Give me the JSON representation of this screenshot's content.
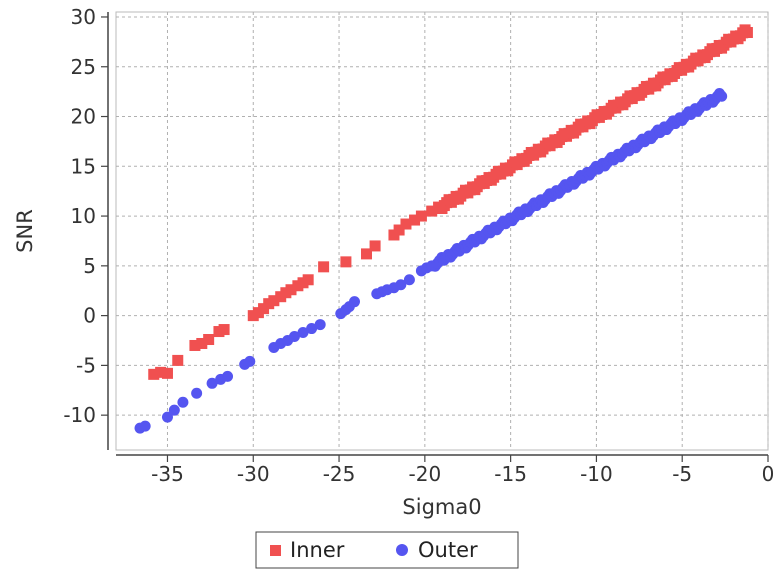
{
  "chart_data": {
    "type": "scatter",
    "xlabel": "Sigma0",
    "ylabel": "SNR",
    "xlim": [
      -38,
      0
    ],
    "ylim": [
      -13.5,
      30.5
    ],
    "xticks": [
      -35,
      -30,
      -25,
      -20,
      -15,
      -10,
      -5,
      0
    ],
    "yticks": [
      -10,
      -5,
      0,
      5,
      10,
      15,
      20,
      25,
      30
    ],
    "grid": true,
    "legend": "bottom",
    "series": [
      {
        "name": "Inner",
        "marker": "square",
        "color": "#f05050",
        "points": [
          [
            -35.8,
            -5.9
          ],
          [
            -35.4,
            -5.7
          ],
          [
            -35.0,
            -5.8
          ],
          [
            -34.4,
            -4.5
          ],
          [
            -33.4,
            -3.0
          ],
          [
            -33.0,
            -2.8
          ],
          [
            -32.6,
            -2.4
          ],
          [
            -32.0,
            -1.6
          ],
          [
            -31.7,
            -1.4
          ],
          [
            -30.0,
            0.0
          ],
          [
            -29.7,
            0.3
          ],
          [
            -29.4,
            0.7
          ],
          [
            -29.1,
            1.2
          ],
          [
            -28.8,
            1.5
          ],
          [
            -28.4,
            1.9
          ],
          [
            -28.1,
            2.3
          ],
          [
            -27.8,
            2.6
          ],
          [
            -27.4,
            3.0
          ],
          [
            -27.1,
            3.3
          ],
          [
            -26.8,
            3.6
          ],
          [
            -25.9,
            4.9
          ],
          [
            -24.6,
            5.4
          ],
          [
            -23.4,
            6.2
          ],
          [
            -22.9,
            7.0
          ],
          [
            -21.8,
            8.1
          ],
          [
            -21.5,
            8.6
          ],
          [
            -21.1,
            9.2
          ],
          [
            -20.6,
            9.6
          ],
          [
            -20.2,
            10.0
          ],
          [
            -19.6,
            10.5
          ],
          [
            -19.2,
            10.9
          ]
        ],
        "segments": [
          [
            -19.0,
            11.0,
            -1.2,
            28.6
          ]
        ]
      },
      {
        "name": "Outer",
        "marker": "circle",
        "color": "#5555f0",
        "points": [
          [
            -36.6,
            -11.3
          ],
          [
            -36.3,
            -11.1
          ],
          [
            -35.0,
            -10.2
          ],
          [
            -34.6,
            -9.5
          ],
          [
            -34.1,
            -8.7
          ],
          [
            -33.3,
            -7.8
          ],
          [
            -32.4,
            -6.8
          ],
          [
            -31.9,
            -6.4
          ],
          [
            -31.5,
            -6.1
          ],
          [
            -30.5,
            -4.9
          ],
          [
            -30.2,
            -4.6
          ],
          [
            -28.8,
            -3.2
          ],
          [
            -28.4,
            -2.8
          ],
          [
            -28.0,
            -2.5
          ],
          [
            -27.6,
            -2.1
          ],
          [
            -27.1,
            -1.7
          ],
          [
            -26.6,
            -1.3
          ],
          [
            -26.1,
            -0.9
          ],
          [
            -24.9,
            0.2
          ],
          [
            -24.6,
            0.6
          ],
          [
            -24.4,
            0.9
          ],
          [
            -24.1,
            1.4
          ],
          [
            -22.8,
            2.2
          ],
          [
            -22.5,
            2.4
          ],
          [
            -22.2,
            2.6
          ],
          [
            -21.8,
            2.8
          ],
          [
            -21.4,
            3.1
          ],
          [
            -20.9,
            3.6
          ],
          [
            -20.2,
            4.5
          ],
          [
            -19.9,
            4.8
          ],
          [
            -19.6,
            5.0
          ]
        ],
        "segments": [
          [
            -19.4,
            5.2,
            -2.7,
            22.2
          ]
        ]
      }
    ]
  }
}
